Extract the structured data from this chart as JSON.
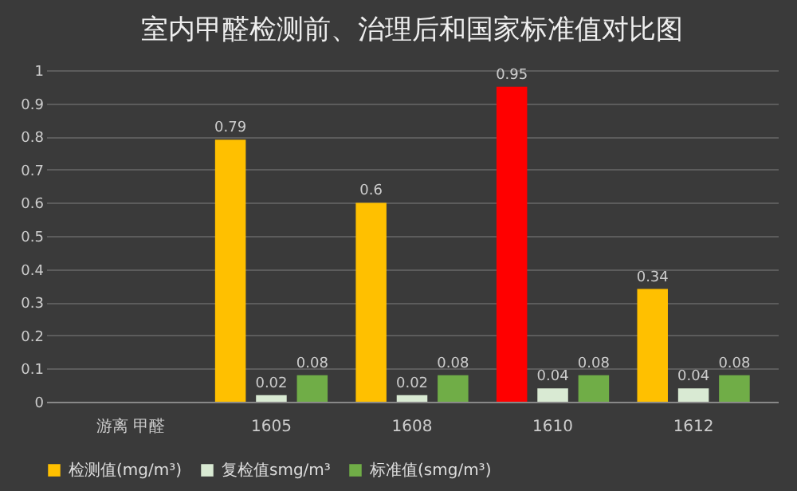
{
  "chart_data": {
    "type": "bar",
    "title": "室内甲醛检测前、治理后和国家标准值对比图",
    "categories": [
      "游离 甲醛",
      "1605",
      "1608",
      "1610",
      "1612"
    ],
    "series": [
      {
        "name": "检测值(mg/m³)",
        "color": "#ffc000",
        "colors": [
          "#ffc000",
          "#ffc000",
          "#ffc000",
          "#ff0000",
          "#ffc000"
        ],
        "values": [
          null,
          0.79,
          0.6,
          0.95,
          0.34
        ]
      },
      {
        "name": "复检值smg/m³",
        "color": "#d9ead3",
        "values": [
          null,
          0.02,
          0.02,
          0.04,
          0.04
        ]
      },
      {
        "name": "标准值(smg/m³)",
        "color": "#70ad47",
        "values": [
          null,
          0.08,
          0.08,
          0.08,
          0.08
        ]
      }
    ],
    "ylim": [
      0,
      1
    ],
    "yticks": [
      0,
      0.1,
      0.2,
      0.3,
      0.4,
      0.5,
      0.6,
      0.7,
      0.8,
      0.9,
      1
    ],
    "grid": "y",
    "legend": "bottom",
    "data_labels": true
  }
}
